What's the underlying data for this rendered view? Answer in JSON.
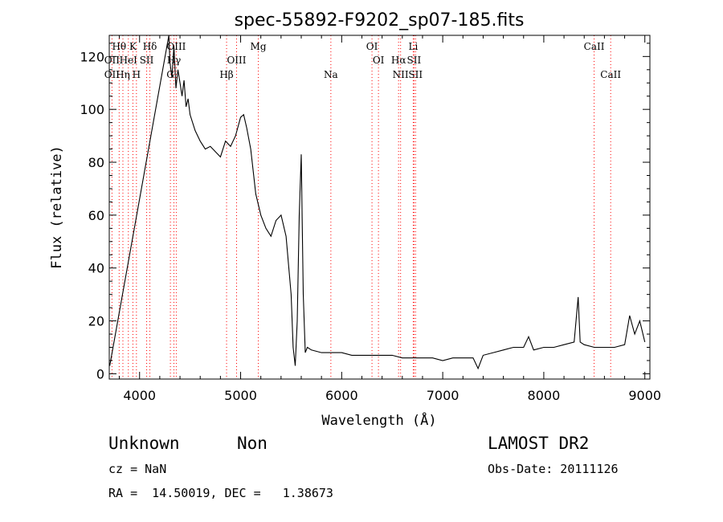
{
  "chart_data": {
    "type": "line",
    "title": "spec-55892-F9202_sp07-185.fits",
    "xlabel": "Wavelength (Å)",
    "ylabel": "Flux (relative)",
    "xlim": [
      3700,
      9050
    ],
    "ylim": [
      -2,
      128
    ],
    "xticks": [
      "4000",
      "5000",
      "6000",
      "7000",
      "8000",
      "9000"
    ],
    "yticks": [
      "0",
      "20",
      "40",
      "60",
      "80",
      "100",
      "120"
    ],
    "grid": false,
    "series": [
      {
        "x": [
          3705,
          4290,
          4300,
          4320,
          4340,
          4360,
          4380,
          4400,
          4420,
          4440,
          4460,
          4480,
          4500,
          4550,
          4600,
          4650,
          4700,
          4750,
          4800,
          4850,
          4900,
          4950,
          5000,
          5030,
          5060,
          5100,
          5150,
          5200,
          5250,
          5300,
          5350,
          5400,
          5450,
          5500,
          5520,
          5540,
          5560,
          5580,
          5600,
          5620,
          5640,
          5660,
          5700,
          5800,
          5900,
          6000,
          6100,
          6200,
          6300,
          6400,
          6500,
          6600,
          6700,
          6800,
          6900,
          7000,
          7100,
          7200,
          7300,
          7350,
          7400,
          7500,
          7600,
          7700,
          7800,
          7850,
          7900,
          8000,
          8100,
          8200,
          8300,
          8340,
          8360,
          8400,
          8500,
          8600,
          8700,
          8800,
          8850,
          8900,
          8950,
          9000
        ],
        "y": [
          3,
          128,
          118,
          112,
          124,
          108,
          115,
          110,
          105,
          111,
          101,
          104,
          98,
          92,
          88,
          85,
          86,
          84,
          82,
          88,
          86,
          90,
          97,
          98,
          93,
          85,
          68,
          60,
          55,
          52,
          58,
          60,
          52,
          30,
          10,
          3,
          20,
          60,
          83,
          30,
          8,
          10,
          9,
          8,
          8,
          8,
          7,
          7,
          7,
          7,
          7,
          6,
          6,
          6,
          6,
          5,
          6,
          6,
          6,
          2,
          7,
          8,
          9,
          10,
          10,
          14,
          9,
          10,
          10,
          11,
          12,
          29,
          12,
          11,
          10,
          10,
          10,
          11,
          22,
          15,
          20,
          12
        ]
      }
    ],
    "line_markers": [
      {
        "label": "Hθ",
        "x": 3798,
        "row": 1
      },
      {
        "label": "K",
        "x": 3934,
        "row": 1
      },
      {
        "label": "Hδ",
        "x": 4102,
        "row": 1
      },
      {
        "label": "OII",
        "x": 3727,
        "row": 2
      },
      {
        "label": "HeI",
        "x": 3889,
        "row": 2
      },
      {
        "label": "SII",
        "x": 4070,
        "row": 2
      },
      {
        "label": "OII",
        "x": 3727,
        "row": 3
      },
      {
        "label": "Hη",
        "x": 3835,
        "row": 3
      },
      {
        "label": "H",
        "x": 3969,
        "row": 3
      },
      {
        "label": "OIII",
        "x": 4363,
        "row": 1
      },
      {
        "label": "Hγ",
        "x": 4340,
        "row": 2
      },
      {
        "label": "G",
        "x": 4305,
        "row": 3
      },
      {
        "label": "Mg",
        "x": 5175,
        "row": 1
      },
      {
        "label": "OIII",
        "x": 4960,
        "row": 2
      },
      {
        "label": "Hβ",
        "x": 4861,
        "row": 3
      },
      {
        "label": "Na",
        "x": 5893,
        "row": 3
      },
      {
        "label": "OI",
        "x": 6300,
        "row": 1
      },
      {
        "label": "OI",
        "x": 6364,
        "row": 2
      },
      {
        "label": "Li",
        "x": 6708,
        "row": 1
      },
      {
        "label": "Hα",
        "x": 6563,
        "row": 2
      },
      {
        "label": "SII",
        "x": 6716,
        "row": 2
      },
      {
        "label": "NII",
        "x": 6583,
        "row": 3
      },
      {
        "label": "SII",
        "x": 6731,
        "row": 3
      },
      {
        "label": "CaII",
        "x": 8498,
        "row": 1
      },
      {
        "label": "CaII",
        "x": 8662,
        "row": 3
      }
    ]
  },
  "info": {
    "class": "Unknown",
    "subclass": "Non",
    "survey": "LAMOST DR2",
    "cz": "cz = NaN",
    "obs_date": "Obs-Date: 20111126",
    "radec": "RA =  14.50019, DEC =   1.38673"
  },
  "colors": {
    "line_marker": "#ff0000",
    "spectrum": "#000000"
  }
}
